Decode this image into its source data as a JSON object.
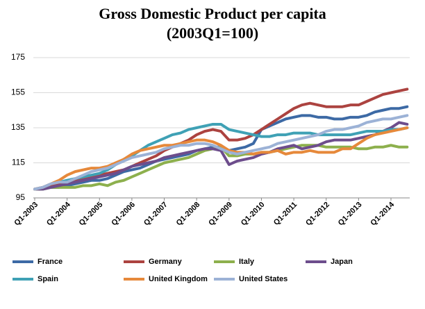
{
  "chart_data": {
    "type": "line",
    "title": "Gross Domestic Product per capita",
    "subtitle": "(2003Q1=100)",
    "categories": [
      "Q1-2003",
      null,
      null,
      null,
      "Q1-2004",
      null,
      null,
      null,
      "Q1-2005",
      null,
      null,
      null,
      "Q1-2006",
      null,
      null,
      null,
      "Q1-2007",
      null,
      null,
      null,
      "Q1-2008",
      null,
      null,
      null,
      "Q1-2009",
      null,
      null,
      null,
      "Q1-2010",
      null,
      null,
      null,
      "Q1-2011",
      null,
      null,
      null,
      "Q1-2012",
      null,
      null,
      null,
      "Q1-2013",
      null,
      null,
      null,
      "Q1-2014",
      null,
      null
    ],
    "series": [
      {
        "name": "France",
        "color": "#3d6aa5",
        "values": [
          100,
          100,
          101,
          101,
          102,
          103,
          104,
          105,
          105,
          106,
          108,
          110,
          111,
          112,
          114,
          116,
          117,
          118,
          119,
          120,
          122,
          123,
          124,
          124,
          122,
          123,
          124,
          126,
          134,
          136,
          138,
          140,
          141,
          142,
          142,
          141,
          141,
          140,
          140,
          141,
          141,
          142,
          144,
          145,
          146,
          146,
          147
        ]
      },
      {
        "name": "Germany",
        "color": "#ac4340",
        "values": [
          100,
          101,
          102,
          103,
          104,
          105,
          106,
          107,
          108,
          109,
          110,
          111,
          113,
          115,
          117,
          119,
          122,
          124,
          126,
          128,
          131,
          133,
          134,
          133,
          128,
          128,
          129,
          131,
          134,
          137,
          140,
          143,
          146,
          148,
          149,
          148,
          147,
          147,
          147,
          148,
          148,
          150,
          152,
          154,
          155,
          156,
          157
        ]
      },
      {
        "name": "Italy",
        "color": "#8db04d",
        "values": [
          100,
          100,
          101,
          101,
          101,
          101,
          102,
          102,
          103,
          102,
          104,
          105,
          107,
          109,
          111,
          113,
          115,
          116,
          117,
          118,
          120,
          122,
          123,
          124,
          119,
          119,
          120,
          120,
          121,
          121,
          122,
          123,
          124,
          125,
          125,
          125,
          124,
          124,
          124,
          124,
          123,
          123,
          124,
          124,
          125,
          124,
          124
        ]
      },
      {
        "name": "Japan",
        "color": "#6d4d8c",
        "values": [
          100,
          100,
          101,
          102,
          103,
          104,
          105,
          106,
          107,
          108,
          109,
          111,
          113,
          114,
          115,
          116,
          118,
          119,
          120,
          121,
          122,
          123,
          123,
          122,
          114,
          116,
          117,
          118,
          120,
          121,
          123,
          124,
          125,
          123,
          124,
          125,
          127,
          128,
          128,
          128,
          129,
          130,
          131,
          133,
          135,
          138,
          137
        ]
      },
      {
        "name": "Spain",
        "color": "#3fa1b5",
        "values": [
          100,
          101,
          103,
          104,
          105,
          106,
          107,
          108,
          109,
          111,
          114,
          117,
          119,
          122,
          125,
          127,
          129,
          131,
          132,
          134,
          135,
          136,
          137,
          137,
          134,
          133,
          132,
          131,
          130,
          130,
          131,
          131,
          132,
          132,
          132,
          131,
          131,
          131,
          131,
          131,
          132,
          133,
          133,
          133,
          134,
          134,
          135
        ]
      },
      {
        "name": "United Kingdom",
        "color": "#e6893b",
        "values": [
          100,
          101,
          103,
          105,
          108,
          110,
          111,
          112,
          112,
          113,
          115,
          117,
          120,
          122,
          123,
          124,
          125,
          125,
          126,
          127,
          128,
          128,
          127,
          125,
          122,
          121,
          121,
          120,
          121,
          121,
          122,
          120,
          121,
          121,
          122,
          121,
          121,
          121,
          123,
          123,
          126,
          129,
          131,
          132,
          133,
          134,
          135
        ]
      },
      {
        "name": "United States",
        "color": "#9cb2d6",
        "values": [
          100,
          101,
          103,
          104,
          104,
          106,
          108,
          110,
          111,
          112,
          114,
          116,
          118,
          119,
          120,
          121,
          123,
          124,
          125,
          125,
          126,
          126,
          125,
          123,
          121,
          120,
          121,
          122,
          123,
          124,
          126,
          127,
          128,
          129,
          130,
          131,
          133,
          134,
          134,
          135,
          136,
          138,
          139,
          140,
          140,
          141,
          142
        ]
      }
    ],
    "ylim": [
      95,
      175
    ],
    "yticks": [
      95,
      115,
      135,
      155,
      175
    ],
    "grid": true
  }
}
